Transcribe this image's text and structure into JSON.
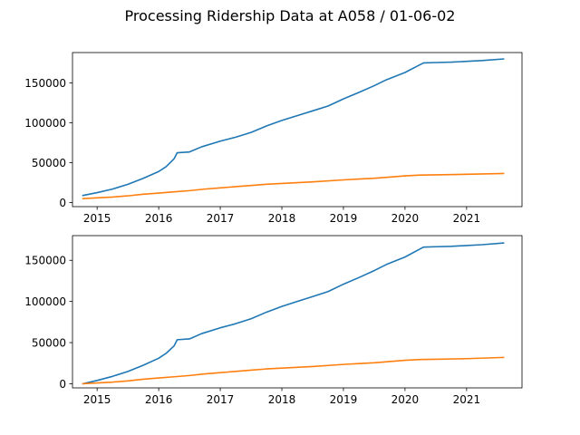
{
  "figure": {
    "title": "Processing Ridership Data at A058 / 01-06-02"
  },
  "colors": {
    "series_blue": "#1f77b4",
    "series_orange": "#ff7f0e",
    "axes": "#000000",
    "background": "#ffffff"
  },
  "chart_data": [
    {
      "type": "line",
      "title": "",
      "xlabel": "",
      "ylabel": "",
      "grid": false,
      "xlim": [
        2014.6,
        2021.9
      ],
      "ylim": [
        -5000,
        188000
      ],
      "x_ticks": [
        2015,
        2016,
        2017,
        2018,
        2019,
        2020,
        2021
      ],
      "x_tick_labels": [
        "2015",
        "2016",
        "2017",
        "2018",
        "2019",
        "2020",
        "2021"
      ],
      "y_ticks": [
        0,
        50000,
        100000,
        150000
      ],
      "y_tick_labels": [
        "0",
        "50000",
        "100000",
        "150000"
      ],
      "series": [
        {
          "color": "#1f77b4",
          "points": [
            [
              2014.77,
              9000
            ],
            [
              2015.0,
              12500
            ],
            [
              2015.25,
              17000
            ],
            [
              2015.5,
              23000
            ],
            [
              2015.75,
              30500
            ],
            [
              2016.0,
              39000
            ],
            [
              2016.12,
              45000
            ],
            [
              2016.25,
              55000
            ],
            [
              2016.3,
              62500
            ],
            [
              2016.5,
              63500
            ],
            [
              2016.7,
              70000
            ],
            [
              2017.0,
              77000
            ],
            [
              2017.25,
              82000
            ],
            [
              2017.5,
              88000
            ],
            [
              2017.75,
              96000
            ],
            [
              2018.0,
              103000
            ],
            [
              2018.25,
              109000
            ],
            [
              2018.5,
              115000
            ],
            [
              2018.75,
              121000
            ],
            [
              2019.0,
              130000
            ],
            [
              2019.25,
              138000
            ],
            [
              2019.5,
              146500
            ],
            [
              2019.7,
              154000
            ],
            [
              2020.0,
              163000
            ],
            [
              2020.2,
              171000
            ],
            [
              2020.3,
              175000
            ],
            [
              2020.5,
              175500
            ],
            [
              2020.75,
              176000
            ],
            [
              2021.0,
              177000
            ],
            [
              2021.25,
              178000
            ],
            [
              2021.6,
              180000
            ]
          ]
        },
        {
          "color": "#ff7f0e",
          "points": [
            [
              2014.77,
              5000
            ],
            [
              2015.0,
              6000
            ],
            [
              2015.25,
              7000
            ],
            [
              2015.5,
              8500
            ],
            [
              2015.75,
              10500
            ],
            [
              2016.0,
              12000
            ],
            [
              2016.25,
              13500
            ],
            [
              2016.5,
              15000
            ],
            [
              2016.75,
              17000
            ],
            [
              2017.0,
              18500
            ],
            [
              2017.25,
              20000
            ],
            [
              2017.5,
              21500
            ],
            [
              2017.75,
              23000
            ],
            [
              2018.0,
              24000
            ],
            [
              2018.5,
              26000
            ],
            [
              2019.0,
              28500
            ],
            [
              2019.25,
              29500
            ],
            [
              2019.5,
              30500
            ],
            [
              2019.75,
              32000
            ],
            [
              2020.0,
              33500
            ],
            [
              2020.25,
              34500
            ],
            [
              2020.5,
              34800
            ],
            [
              2021.0,
              35500
            ],
            [
              2021.6,
              36500
            ]
          ]
        }
      ]
    },
    {
      "type": "line",
      "title": "",
      "xlabel": "",
      "ylabel": "",
      "grid": false,
      "xlim": [
        2014.6,
        2021.9
      ],
      "ylim": [
        -5000,
        180000
      ],
      "x_ticks": [
        2015,
        2016,
        2017,
        2018,
        2019,
        2020,
        2021
      ],
      "x_tick_labels": [
        "2015",
        "2016",
        "2017",
        "2018",
        "2019",
        "2020",
        "2021"
      ],
      "y_ticks": [
        0,
        50000,
        100000,
        150000
      ],
      "y_tick_labels": [
        "0",
        "50000",
        "100000",
        "150000"
      ],
      "series": [
        {
          "color": "#1f77b4",
          "points": [
            [
              2014.77,
              0
            ],
            [
              2015.0,
              4000
            ],
            [
              2015.25,
              9000
            ],
            [
              2015.5,
              15000
            ],
            [
              2015.75,
              22500
            ],
            [
              2016.0,
              31000
            ],
            [
              2016.12,
              37000
            ],
            [
              2016.25,
              46000
            ],
            [
              2016.3,
              53500
            ],
            [
              2016.5,
              54500
            ],
            [
              2016.7,
              61000
            ],
            [
              2017.0,
              68000
            ],
            [
              2017.25,
              73000
            ],
            [
              2017.5,
              79000
            ],
            [
              2017.75,
              87000
            ],
            [
              2018.0,
              94000
            ],
            [
              2018.25,
              100000
            ],
            [
              2018.5,
              106000
            ],
            [
              2018.75,
              112000
            ],
            [
              2019.0,
              121000
            ],
            [
              2019.25,
              129000
            ],
            [
              2019.5,
              137500
            ],
            [
              2019.7,
              145000
            ],
            [
              2020.0,
              154000
            ],
            [
              2020.2,
              162000
            ],
            [
              2020.3,
              166000
            ],
            [
              2020.5,
              166500
            ],
            [
              2020.75,
              167000
            ],
            [
              2021.0,
              168000
            ],
            [
              2021.25,
              169000
            ],
            [
              2021.6,
              171000
            ]
          ]
        },
        {
          "color": "#ff7f0e",
          "points": [
            [
              2014.77,
              0
            ],
            [
              2015.0,
              1000
            ],
            [
              2015.25,
              2000
            ],
            [
              2015.5,
              3500
            ],
            [
              2015.75,
              5500
            ],
            [
              2016.0,
              7000
            ],
            [
              2016.25,
              8500
            ],
            [
              2016.5,
              10000
            ],
            [
              2016.75,
              12000
            ],
            [
              2017.0,
              13500
            ],
            [
              2017.25,
              15000
            ],
            [
              2017.5,
              16500
            ],
            [
              2017.75,
              18000
            ],
            [
              2018.0,
              19000
            ],
            [
              2018.5,
              21000
            ],
            [
              2019.0,
              23500
            ],
            [
              2019.25,
              24500
            ],
            [
              2019.5,
              25500
            ],
            [
              2019.75,
              27000
            ],
            [
              2020.0,
              28500
            ],
            [
              2020.25,
              29500
            ],
            [
              2020.5,
              29800
            ],
            [
              2021.0,
              30500
            ],
            [
              2021.6,
              32000
            ]
          ]
        }
      ]
    }
  ]
}
